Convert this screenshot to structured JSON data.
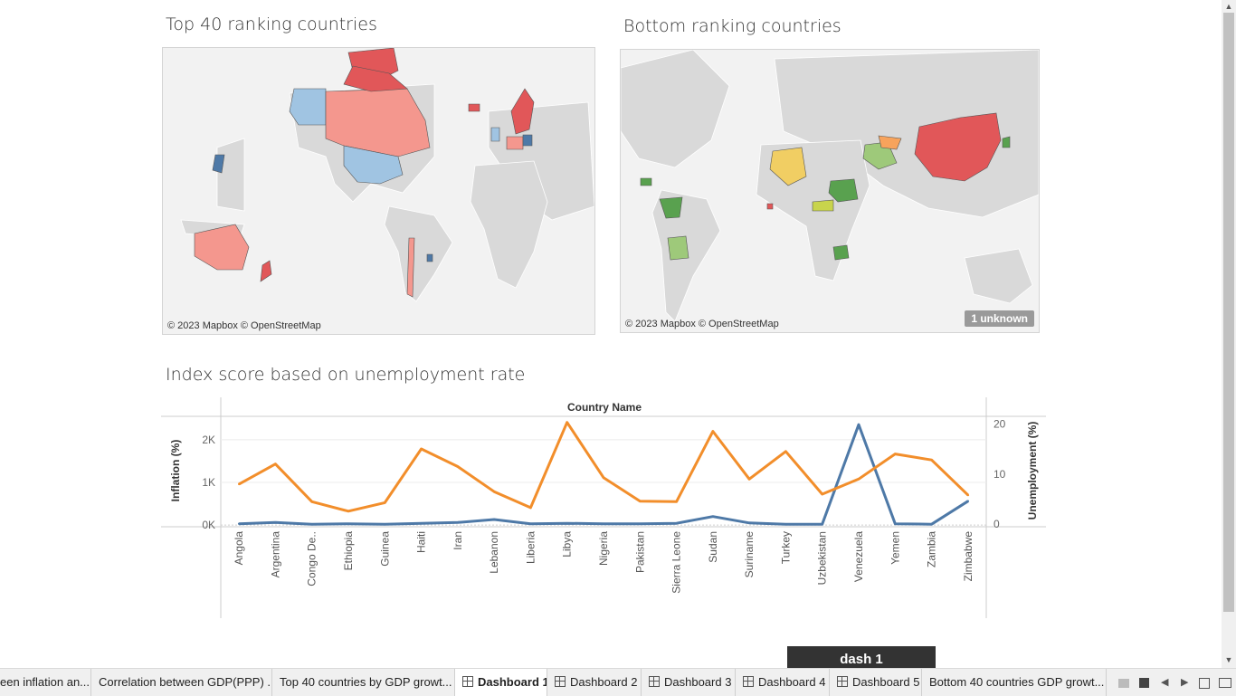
{
  "top_map": {
    "title": "Top 40 ranking countries",
    "attribution": "© 2023 Mapbox © OpenStreetMap"
  },
  "bottom_map": {
    "title": "Bottom ranking countries",
    "attribution": "© 2023 Mapbox © OpenStreetMap",
    "unknown_badge": "1 unknown"
  },
  "chart_section": {
    "title": "Index score based on unemployment rate"
  },
  "colors": {
    "inflation_line": "#4e79a7",
    "unemployment_line": "#f28e2b",
    "map_red": "#e15759",
    "map_salmon": "#f4978e",
    "map_light_blue": "#a0c4e2",
    "map_blue": "#4e79a7",
    "map_green": "#59a14f",
    "map_light_green": "#9ec97a",
    "map_yellow": "#f1ce63",
    "map_orange": "#f7a35c"
  },
  "chart_data": {
    "type": "line",
    "header": "Country Name",
    "categories": [
      "Angola",
      "Argentina",
      "Congo De..",
      "Ethiopia",
      "Guinea",
      "Haiti",
      "Iran",
      "Lebanon",
      "Liberia",
      "Libya",
      "Nigeria",
      "Pakistan",
      "Sierra Leone",
      "Sudan",
      "Suriname",
      "Turkey",
      "Uzbekistan",
      "Venezuela",
      "Yemen",
      "Zambia",
      "Zimbabwe"
    ],
    "left_axis": {
      "label": "Inflation (%)",
      "range": [
        -40,
        2550
      ],
      "ticks": [
        0,
        1000,
        2000
      ],
      "tick_labels": [
        "0K",
        "1K",
        "2K"
      ]
    },
    "right_axis": {
      "label": "Unemployment (%)",
      "range": [
        -0.5,
        21.5
      ],
      "ticks": [
        0,
        10,
        20
      ],
      "tick_labels": [
        "0",
        "10",
        "20"
      ]
    },
    "series": [
      {
        "axis": "left",
        "values": [
          30,
          60,
          20,
          30,
          20,
          40,
          60,
          130,
          30,
          40,
          30,
          30,
          40,
          200,
          50,
          20,
          20,
          2355,
          30,
          20,
          560
        ]
      },
      {
        "axis": "right",
        "values": [
          8,
          12,
          4.5,
          2.6,
          4.3,
          15,
          11.5,
          6.5,
          3.3,
          20.3,
          9.3,
          4.6,
          4.5,
          18.5,
          9,
          14.5,
          6,
          9,
          14,
          12.8,
          5.8
        ]
      }
    ],
    "grid": true
  },
  "tabs": [
    {
      "label": "een inflation an..."
    },
    {
      "label": "Correlation between GDP(PPP) ..."
    },
    {
      "label": "Top 40 countries by GDP growt..."
    },
    {
      "label": "Dashboard 1"
    },
    {
      "label": "Dashboard 2"
    },
    {
      "label": "Dashboard 3"
    },
    {
      "label": "Dashboard 4"
    },
    {
      "label": "Dashboard 5"
    },
    {
      "label": "Bottom 40 countries GDP growt..."
    }
  ],
  "dark_box_label": "dash 1"
}
